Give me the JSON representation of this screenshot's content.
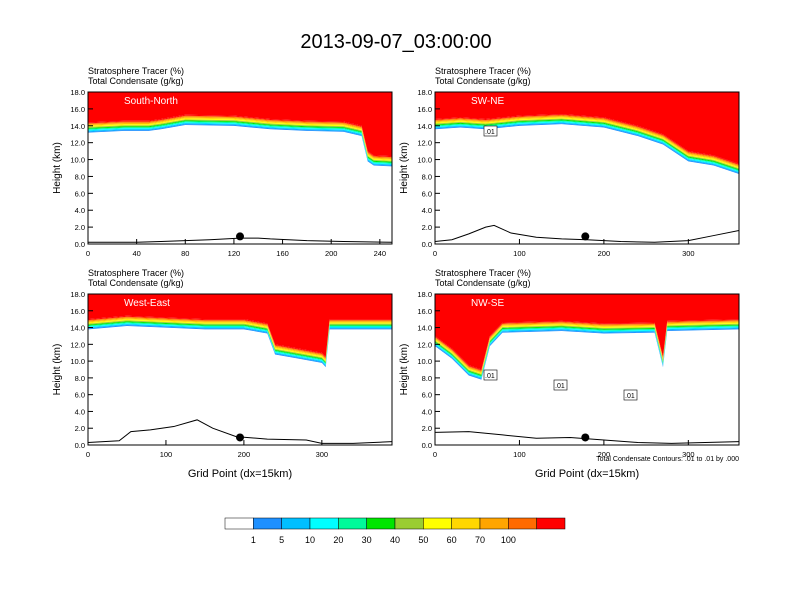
{
  "title": "2013-09-07_03:00:00",
  "panel_header_line1": "Stratosphere Tracer   (%)",
  "panel_header_line2": "Total Condensate   (g/kg)",
  "ylabel": "Height (km)",
  "xlabel": "Grid Point (dx=15km)",
  "contour_note": "Total Condensate Contours: .01 to .01 by .000",
  "colorbar": {
    "colors": [
      "#ffffff",
      "#1e90ff",
      "#00bfff",
      "#00ffff",
      "#00fa9a",
      "#00e600",
      "#9acd32",
      "#ffff00",
      "#ffd700",
      "#ffa500",
      "#ff6a00",
      "#ff0000"
    ],
    "labels": [
      "1",
      "5",
      "10",
      "20",
      "30",
      "40",
      "50",
      "60",
      "70",
      "100"
    ]
  },
  "chart_data": [
    {
      "type": "heatmap",
      "panel_label": "South-North",
      "xlim": [
        0,
        250
      ],
      "ylim": [
        0,
        18
      ],
      "xticks": [
        0,
        40,
        80,
        120,
        160,
        200,
        240
      ],
      "yticks": [
        "0.0",
        "2.0",
        "4.0",
        "6.0",
        "8.0",
        "10.0",
        "12.0",
        "14.0",
        "16.0",
        "18.0"
      ],
      "tropopause_km": [
        [
          0,
          14.4
        ],
        [
          30,
          14.6
        ],
        [
          50,
          14.6
        ],
        [
          60,
          14.8
        ],
        [
          80,
          15.3
        ],
        [
          120,
          15.2
        ],
        [
          150,
          14.8
        ],
        [
          180,
          14.6
        ],
        [
          210,
          14.5
        ],
        [
          225,
          14.0
        ],
        [
          230,
          11.0
        ],
        [
          235,
          10.5
        ],
        [
          250,
          10.4
        ]
      ],
      "terrain_km": [
        [
          0,
          0.2
        ],
        [
          40,
          0.2
        ],
        [
          60,
          0.3
        ],
        [
          80,
          0.4
        ],
        [
          100,
          0.5
        ],
        [
          125,
          0.7
        ],
        [
          140,
          0.7
        ],
        [
          150,
          0.6
        ],
        [
          180,
          0.4
        ],
        [
          210,
          0.3
        ],
        [
          250,
          0.2
        ]
      ],
      "marker_x": 125,
      "contour_labels": []
    },
    {
      "type": "heatmap",
      "panel_label": "SW-NE",
      "xlim": [
        0,
        360
      ],
      "ylim": [
        0,
        18
      ],
      "xticks": [
        0,
        100,
        200,
        300
      ],
      "yticks": [
        "0.0",
        "2.0",
        "4.0",
        "6.0",
        "8.0",
        "10.0",
        "12.0",
        "14.0",
        "16.0",
        "18.0"
      ],
      "tropopause_km": [
        [
          0,
          14.8
        ],
        [
          30,
          15.0
        ],
        [
          60,
          14.8
        ],
        [
          100,
          15.2
        ],
        [
          150,
          15.4
        ],
        [
          200,
          15.0
        ],
        [
          240,
          14.0
        ],
        [
          270,
          13.0
        ],
        [
          300,
          11.0
        ],
        [
          330,
          10.5
        ],
        [
          360,
          9.5
        ]
      ],
      "terrain_km": [
        [
          0,
          0.3
        ],
        [
          20,
          0.5
        ],
        [
          40,
          1.2
        ],
        [
          60,
          2.0
        ],
        [
          70,
          2.2
        ],
        [
          90,
          1.3
        ],
        [
          120,
          0.8
        ],
        [
          150,
          0.6
        ],
        [
          180,
          0.5
        ],
        [
          220,
          0.3
        ],
        [
          260,
          0.2
        ],
        [
          300,
          0.4
        ],
        [
          330,
          1.0
        ],
        [
          360,
          1.6
        ]
      ],
      "marker_x": 178,
      "contour_labels": [
        ".01"
      ]
    },
    {
      "type": "heatmap",
      "panel_label": "West-East",
      "xlim": [
        0,
        390
      ],
      "ylim": [
        0,
        18
      ],
      "xticks": [
        0,
        100,
        200,
        300
      ],
      "yticks": [
        "0.0",
        "2.0",
        "4.0",
        "6.0",
        "8.0",
        "10.0",
        "12.0",
        "14.0",
        "16.0",
        "18.0"
      ],
      "tropopause_km": [
        [
          0,
          15.0
        ],
        [
          50,
          15.4
        ],
        [
          100,
          15.2
        ],
        [
          150,
          15.0
        ],
        [
          200,
          15.0
        ],
        [
          230,
          14.5
        ],
        [
          240,
          12.0
        ],
        [
          270,
          11.5
        ],
        [
          300,
          11.0
        ],
        [
          305,
          10.5
        ],
        [
          310,
          15.0
        ],
        [
          390,
          15.0
        ]
      ],
      "terrain_km": [
        [
          0,
          0.3
        ],
        [
          40,
          0.5
        ],
        [
          55,
          1.6
        ],
        [
          80,
          1.8
        ],
        [
          110,
          2.2
        ],
        [
          140,
          3.0
        ],
        [
          160,
          2.0
        ],
        [
          190,
          1.0
        ],
        [
          230,
          0.7
        ],
        [
          280,
          0.6
        ],
        [
          300,
          0.2
        ],
        [
          340,
          0.2
        ],
        [
          390,
          0.4
        ]
      ],
      "marker_x": 195,
      "contour_labels": []
    },
    {
      "type": "heatmap",
      "panel_label": "NW-SE",
      "xlim": [
        0,
        360
      ],
      "ylim": [
        0,
        18
      ],
      "xticks": [
        0,
        100,
        200,
        300
      ],
      "yticks": [
        "0.0",
        "2.0",
        "4.0",
        "6.0",
        "8.0",
        "10.0",
        "12.0",
        "14.0",
        "16.0",
        "18.0"
      ],
      "tropopause_km": [
        [
          0,
          13.0
        ],
        [
          20,
          11.5
        ],
        [
          40,
          9.5
        ],
        [
          55,
          9.0
        ],
        [
          65,
          13.0
        ],
        [
          80,
          14.6
        ],
        [
          150,
          14.8
        ],
        [
          200,
          14.5
        ],
        [
          260,
          14.6
        ],
        [
          270,
          10.5
        ],
        [
          275,
          14.8
        ],
        [
          360,
          15.0
        ]
      ],
      "terrain_km": [
        [
          0,
          1.5
        ],
        [
          40,
          1.6
        ],
        [
          80,
          1.2
        ],
        [
          120,
          0.8
        ],
        [
          160,
          0.9
        ],
        [
          200,
          0.6
        ],
        [
          240,
          0.3
        ],
        [
          280,
          0.2
        ],
        [
          320,
          0.3
        ],
        [
          360,
          0.4
        ]
      ],
      "marker_x": 178,
      "contour_labels": [
        ".01",
        ".01",
        ".01"
      ]
    }
  ]
}
